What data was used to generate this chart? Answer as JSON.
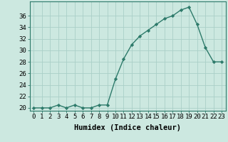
{
  "x": [
    0,
    1,
    2,
    3,
    4,
    5,
    6,
    7,
    8,
    9,
    10,
    11,
    12,
    13,
    14,
    15,
    16,
    17,
    18,
    19,
    20,
    21,
    22,
    23
  ],
  "y": [
    20,
    20,
    20,
    20.5,
    20,
    20.5,
    20,
    20,
    20.5,
    20.5,
    25,
    28.5,
    31,
    32.5,
    33.5,
    34.5,
    35.5,
    36,
    37,
    37.5,
    34.5,
    30.5,
    28,
    28
  ],
  "line_color": "#2d7a6a",
  "marker_color": "#2d7a6a",
  "bg_color": "#cce8e0",
  "grid_color": "#aacfc8",
  "xlabel": "Humidex (Indice chaleur)",
  "xlim": [
    -0.5,
    23.5
  ],
  "ylim": [
    19.5,
    38.5
  ],
  "yticks": [
    20,
    22,
    24,
    26,
    28,
    30,
    32,
    34,
    36
  ],
  "xticks": [
    0,
    1,
    2,
    3,
    4,
    5,
    6,
    7,
    8,
    9,
    10,
    11,
    12,
    13,
    14,
    15,
    16,
    17,
    18,
    19,
    20,
    21,
    22,
    23
  ],
  "xlabel_fontsize": 7.5,
  "tick_fontsize": 6.5,
  "linewidth": 1.0,
  "markersize": 2.2
}
